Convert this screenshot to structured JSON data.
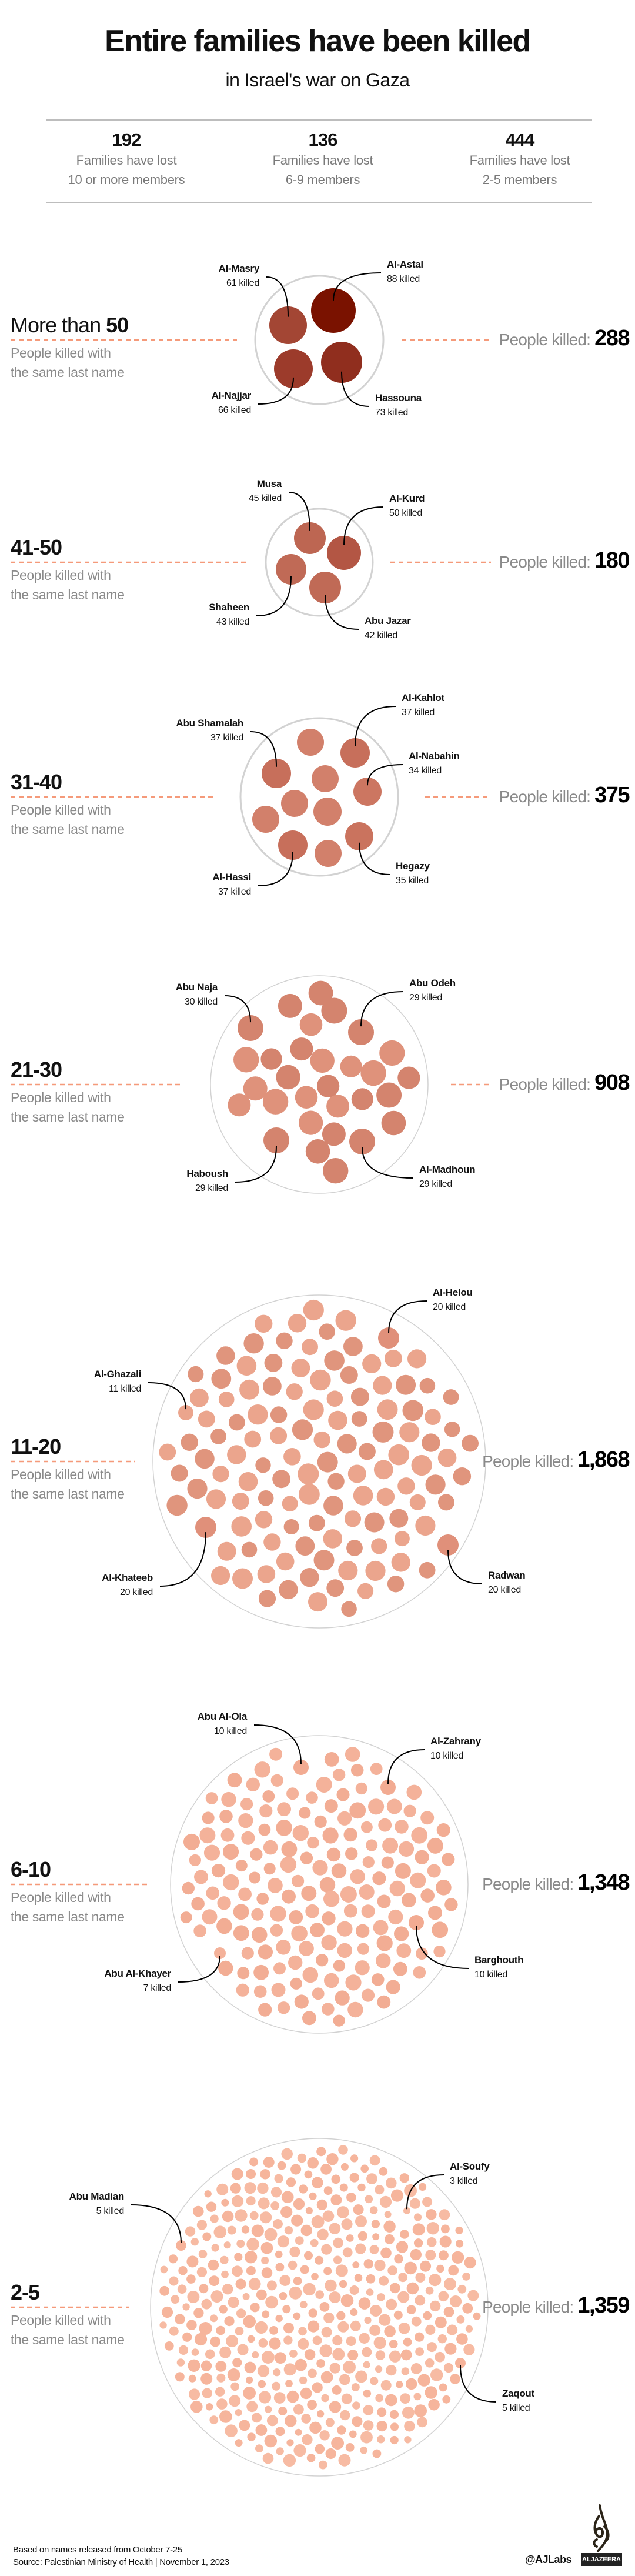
{
  "header": {
    "title": "Entire families have been killed",
    "subtitle": "in Israel's war on Gaza"
  },
  "stats": [
    {
      "number": "192",
      "line1": "Families have lost",
      "line2": "10 or more members"
    },
    {
      "number": "136",
      "line1": "Families have lost",
      "line2": "6-9 members"
    },
    {
      "number": "444",
      "line1": "Families have lost",
      "line2": "2-5 members"
    }
  ],
  "colors": {
    "dash": "#f59a7a",
    "container": "#d2d2d2",
    "leader": "#000000"
  },
  "sections": [
    {
      "title_prefix": "More than ",
      "title_bold": "50",
      "sub1": "People killed with",
      "sub2": "the same last name",
      "total_label": "People killed: ",
      "total": "288",
      "colors": [
        "#a04535",
        "#8e2e1e"
      ],
      "families": [
        {
          "name": "Al-Masry",
          "killed": "61 killed",
          "color": "#a34634"
        },
        {
          "name": "Al-Astal",
          "killed": "88 killed",
          "color": "#7a1200"
        },
        {
          "name": "Al-Najjar",
          "killed": "66 killed",
          "color": "#9c3b2b"
        },
        {
          "name": "Hassouna",
          "killed": "73 killed",
          "color": "#902e1e"
        }
      ]
    },
    {
      "title_prefix": "",
      "title_bold": "41-50",
      "sub1": "People killed with",
      "sub2": "the same last name",
      "total_label": "People killed: ",
      "total": "180",
      "colors": [
        "#bd6652",
        "#b35644"
      ],
      "families": [
        {
          "name": "Musa",
          "killed": "45 killed",
          "color": "#bd6652"
        },
        {
          "name": "Al-Kurd",
          "killed": "50 killed",
          "color": "#b35644"
        },
        {
          "name": "Shaheen",
          "killed": "43 killed",
          "color": "#c06a56"
        },
        {
          "name": "Abu Jazar",
          "killed": "42 killed",
          "color": "#c06a56"
        }
      ]
    },
    {
      "title_prefix": "",
      "title_bold": "31-40",
      "sub1": "People killed with",
      "sub2": "the same last name",
      "total_label": "People killed: ",
      "total": "375",
      "colors": [
        "#c97561",
        "#d2806b"
      ],
      "families": [
        {
          "name": "Abu Shamalah",
          "killed": "37 killed",
          "color": "#c76f5b"
        },
        {
          "name": "Al-Kahlot",
          "killed": "37 killed",
          "color": "#c76f5b"
        },
        {
          "name": "Al-Nabahin",
          "killed": "34 killed",
          "color": "#cc7661"
        },
        {
          "name": "Al-Hassi",
          "killed": "37 killed",
          "color": "#c76f5b"
        },
        {
          "name": "Hegazy",
          "killed": "35 killed",
          "color": "#ca735e"
        }
      ]
    },
    {
      "title_prefix": "",
      "title_bold": "21-30",
      "sub1": "People killed with",
      "sub2": "the same last name",
      "total_label": "People killed: ",
      "total": "908",
      "colors": [
        "#d4846e",
        "#df927b"
      ],
      "families": [
        {
          "name": "Abu Naja",
          "killed": "30 killed",
          "color": "#d4846e"
        },
        {
          "name": "Abu Odeh",
          "killed": "29 killed",
          "color": "#d4846e"
        },
        {
          "name": "Haboush",
          "killed": "29 killed",
          "color": "#d4846e"
        },
        {
          "name": "Al-Madhoun",
          "killed": "29 killed",
          "color": "#d4846e"
        }
      ]
    },
    {
      "title_prefix": "",
      "title_bold": "11-20",
      "sub1": "People killed with",
      "sub2": "the same last name",
      "total_label": "People killed: ",
      "total": "1,868",
      "colors": [
        "#e0957d",
        "#eba58d"
      ],
      "families": [
        {
          "name": "Al-Helou",
          "killed": "20 killed",
          "color": "#e0907a"
        },
        {
          "name": "Al-Ghazali",
          "killed": "11 killed",
          "color": "#eba58d"
        },
        {
          "name": "Al-Khateeb",
          "killed": "20 killed",
          "color": "#e0907a"
        },
        {
          "name": "Radwan",
          "killed": "20 killed",
          "color": "#e0907a"
        }
      ]
    },
    {
      "title_prefix": "",
      "title_bold": "6-10",
      "sub1": "People killed with",
      "sub2": "the same last name",
      "total_label": "People killed: ",
      "total": "1,348",
      "colors": [
        "#f2ad94",
        "#f4b29a"
      ],
      "families": [
        {
          "name": "Abu Al-Ola",
          "killed": "10 killed",
          "color": "#f2ab92"
        },
        {
          "name": "Al-Zahrany",
          "killed": "10 killed",
          "color": "#f2ab92"
        },
        {
          "name": "Abu Al-Khayer",
          "killed": "7 killed",
          "color": "#f4b29a"
        },
        {
          "name": "Barghouth",
          "killed": "10 killed",
          "color": "#f2ab92"
        }
      ]
    },
    {
      "title_prefix": "",
      "title_bold": "2-5",
      "sub1": "People killed with",
      "sub2": "the same last name",
      "total_label": "People killed: ",
      "total": "1,359",
      "colors": [
        "#f6b59c",
        "#f7bba3"
      ],
      "families": [
        {
          "name": "Abu Madian",
          "killed": "5 killed",
          "color": "#f6b39a"
        },
        {
          "name": "Al-Soufy",
          "killed": "3 killed",
          "color": "#f7bba3"
        },
        {
          "name": "Zaqout",
          "killed": "5 killed",
          "color": "#f6b39a"
        }
      ]
    }
  ],
  "footer": {
    "note": "Based on names released from October 7-25",
    "source": "Source:  Palestinian Ministry of Health   |  November 1, 2023",
    "credit": "@AJLabs",
    "logo_text": "ALJAZEERA"
  }
}
